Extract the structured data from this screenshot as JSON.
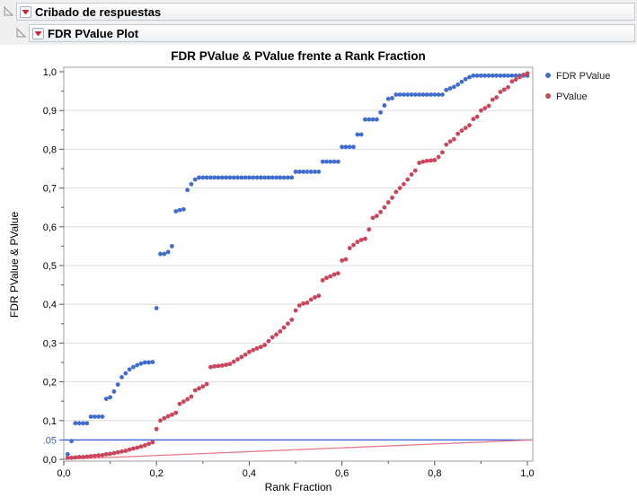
{
  "outline": {
    "section1": {
      "title": "Cribado de respuestas"
    },
    "section2": {
      "title": "FDR PValue Plot"
    }
  },
  "chart_data": {
    "type": "scatter",
    "title": "FDR PValue & PValue frente a Rank Fraction",
    "xlabel": "Rank Fraction",
    "ylabel": "FDR PValue & PValue",
    "xlim": [
      0,
      1
    ],
    "ylim": [
      0,
      1
    ],
    "grid": "horizontal-only",
    "decimal_separator": ",",
    "x_tick_values": [
      0,
      0.2,
      0.4,
      0.6,
      0.8,
      1.0
    ],
    "x_tick_labels": [
      "0,0",
      "0,2",
      "0,4",
      "0,6",
      "0,8",
      "1,0"
    ],
    "x_minor_step": 0.1,
    "y_tick_values": [
      0,
      0.1,
      0.2,
      0.3,
      0.4,
      0.5,
      0.6,
      0.7,
      0.8,
      0.9,
      1.0
    ],
    "y_tick_labels": [
      "0,0",
      "0,1",
      "0,2",
      "0,3",
      "0,4",
      "0,5",
      "0,6",
      "0,7",
      "0,8",
      "0,9",
      "1,0"
    ],
    "y_minor_step": 0.05,
    "alpha_level": 0.05,
    "alpha_tick_label": ".05",
    "n_points": 120,
    "x_rule": "x[i] = (i+1)/120 for i = 0..119",
    "series": [
      {
        "name": "FDR PValue",
        "color": "#3f6ccd",
        "values": [
          0.013,
          0.047,
          0.093,
          0.093,
          0.093,
          0.093,
          0.11,
          0.11,
          0.11,
          0.11,
          0.156,
          0.16,
          0.175,
          0.193,
          0.212,
          0.222,
          0.232,
          0.238,
          0.243,
          0.247,
          0.25,
          0.25,
          0.251,
          0.39,
          0.53,
          0.53,
          0.535,
          0.55,
          0.64,
          0.643,
          0.645,
          0.695,
          0.71,
          0.722,
          0.727,
          0.727,
          0.727,
          0.727,
          0.727,
          0.727,
          0.727,
          0.727,
          0.727,
          0.727,
          0.727,
          0.727,
          0.727,
          0.727,
          0.727,
          0.727,
          0.727,
          0.727,
          0.727,
          0.727,
          0.727,
          0.727,
          0.727,
          0.727,
          0.727,
          0.742,
          0.742,
          0.742,
          0.742,
          0.742,
          0.742,
          0.742,
          0.768,
          0.768,
          0.768,
          0.768,
          0.768,
          0.806,
          0.806,
          0.806,
          0.806,
          0.838,
          0.838,
          0.877,
          0.877,
          0.877,
          0.877,
          0.895,
          0.913,
          0.93,
          0.932,
          0.941,
          0.941,
          0.941,
          0.941,
          0.941,
          0.941,
          0.941,
          0.941,
          0.941,
          0.941,
          0.941,
          0.941,
          0.941,
          0.953,
          0.957,
          0.961,
          0.967,
          0.974,
          0.981,
          0.986,
          0.99,
          0.99,
          0.99,
          0.99,
          0.99,
          0.99,
          0.99,
          0.99,
          0.99,
          0.99,
          0.99,
          0.99,
          0.99,
          0.99,
          0.99
        ]
      },
      {
        "name": "PValue",
        "color": "#c8455a",
        "values": [
          0.004,
          0.004,
          0.005,
          0.006,
          0.006,
          0.007,
          0.008,
          0.009,
          0.01,
          0.011,
          0.013,
          0.014,
          0.016,
          0.018,
          0.02,
          0.022,
          0.025,
          0.028,
          0.03,
          0.033,
          0.036,
          0.04,
          0.044,
          0.078,
          0.1,
          0.106,
          0.111,
          0.115,
          0.12,
          0.143,
          0.149,
          0.155,
          0.162,
          0.178,
          0.183,
          0.188,
          0.194,
          0.238,
          0.24,
          0.241,
          0.242,
          0.244,
          0.246,
          0.252,
          0.258,
          0.264,
          0.27,
          0.277,
          0.282,
          0.286,
          0.29,
          0.295,
          0.305,
          0.315,
          0.322,
          0.33,
          0.34,
          0.35,
          0.36,
          0.384,
          0.397,
          0.402,
          0.404,
          0.412,
          0.418,
          0.422,
          0.462,
          0.468,
          0.472,
          0.477,
          0.48,
          0.513,
          0.516,
          0.545,
          0.553,
          0.561,
          0.566,
          0.569,
          0.593,
          0.623,
          0.628,
          0.638,
          0.65,
          0.663,
          0.675,
          0.69,
          0.7,
          0.71,
          0.722,
          0.735,
          0.745,
          0.765,
          0.768,
          0.77,
          0.771,
          0.772,
          0.78,
          0.792,
          0.812,
          0.82,
          0.826,
          0.84,
          0.848,
          0.855,
          0.862,
          0.878,
          0.884,
          0.9,
          0.906,
          0.912,
          0.928,
          0.934,
          0.948,
          0.954,
          0.96,
          0.975,
          0.98,
          0.986,
          0.992,
          0.996
        ]
      }
    ],
    "reference_lines": [
      {
        "name": "alpha-line",
        "type": "horizontal",
        "y": 0.05,
        "color": "#2e5fd4"
      },
      {
        "name": "rank-alpha-line",
        "type": "segment",
        "from": [
          0,
          0
        ],
        "to": [
          1,
          0.05
        ],
        "color": "#e87a8c"
      }
    ],
    "legend": {
      "position": "top-right",
      "items": [
        {
          "label": "FDR PValue",
          "color": "#3f6ccd"
        },
        {
          "label": "PValue",
          "color": "#c8455a"
        }
      ]
    },
    "style": {
      "grid_color": "#dcdcdc",
      "frame_color": "#9aa0a6",
      "tick_color": "#555555",
      "text_color": "#000000",
      "plot_bg": "#ffffff"
    }
  }
}
